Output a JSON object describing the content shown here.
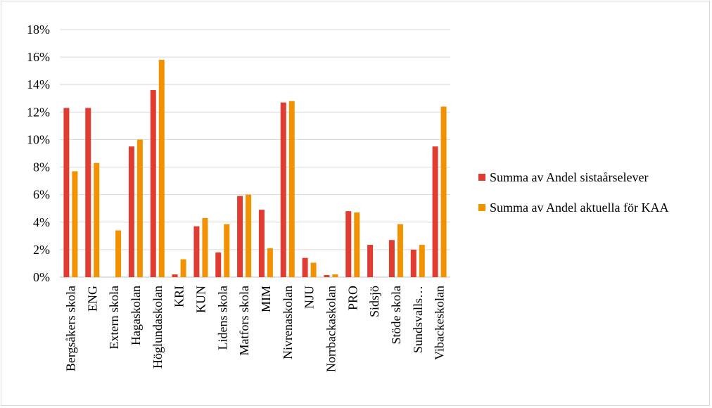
{
  "chart_data": {
    "type": "bar",
    "categories": [
      "Bergsåkers skola",
      "ENG",
      "Extern skola",
      "Hagaskolan",
      "Höglundaskolan",
      "KRI",
      "KUN",
      "Lidens skola",
      "Matfors skola",
      "MIM",
      "Nivrenaskolan",
      "NJU",
      "Norrbackaskolan",
      "PRO",
      "Sidsjö",
      "Stöde skola",
      "Sundsvalls…",
      "Vibackeskolan"
    ],
    "series": [
      {
        "name": "Summa av Andel sistaårselever",
        "color": "#e03c31",
        "values": [
          12.3,
          12.3,
          0,
          9.5,
          13.6,
          0.2,
          3.7,
          1.8,
          5.9,
          4.9,
          12.7,
          1.4,
          0.15,
          4.8,
          2.35,
          2.7,
          2.0,
          9.5
        ]
      },
      {
        "name": "Summa av Andel aktuella för KAA",
        "color": "#f39200",
        "values": [
          7.7,
          8.3,
          3.4,
          10.0,
          15.8,
          1.3,
          4.3,
          3.85,
          6.0,
          2.1,
          12.8,
          1.05,
          0.2,
          4.7,
          0,
          3.85,
          2.35,
          12.4
        ]
      }
    ],
    "y_ticks": [
      "0%",
      "2%",
      "4%",
      "6%",
      "8%",
      "10%",
      "12%",
      "14%",
      "16%",
      "18%"
    ],
    "ylim": [
      0,
      18
    ],
    "y_unit": "%",
    "title": "",
    "xlabel": "",
    "ylabel": "",
    "grid": true,
    "legend_position": "right"
  }
}
